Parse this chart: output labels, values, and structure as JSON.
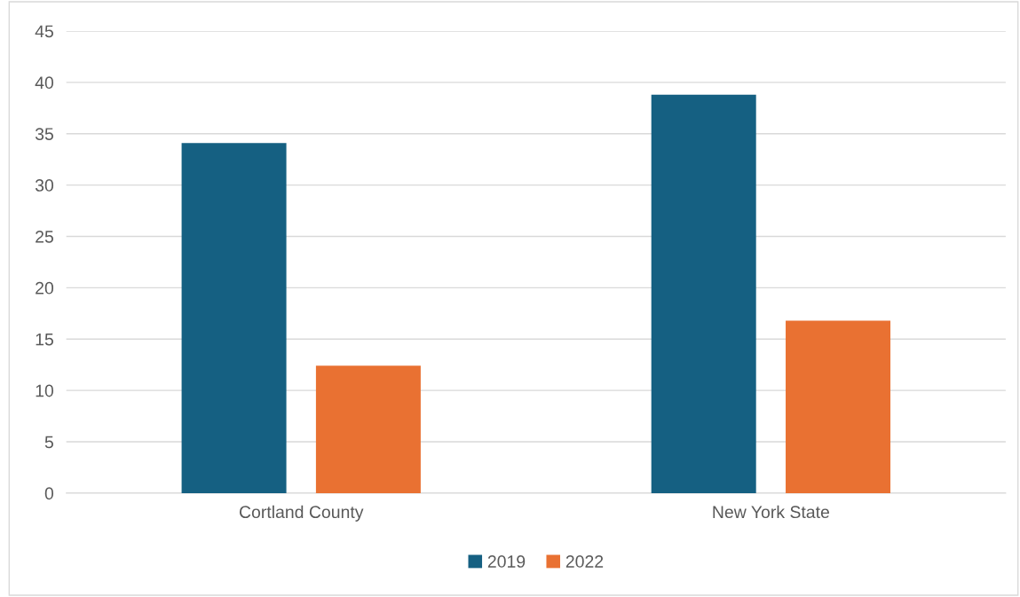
{
  "chart_data": {
    "type": "bar",
    "categories": [
      "Cortland County",
      "New York State"
    ],
    "series": [
      {
        "name": "2019",
        "color": "#156082",
        "values": [
          34.1,
          38.8
        ]
      },
      {
        "name": "2022",
        "color": "#e97132",
        "values": [
          12.4,
          16.8
        ]
      }
    ],
    "ylim": [
      0,
      45
    ],
    "yticks": [
      0,
      5,
      10,
      15,
      20,
      25,
      30,
      35,
      40,
      45
    ],
    "grid": "y",
    "legend": "bottom"
  }
}
